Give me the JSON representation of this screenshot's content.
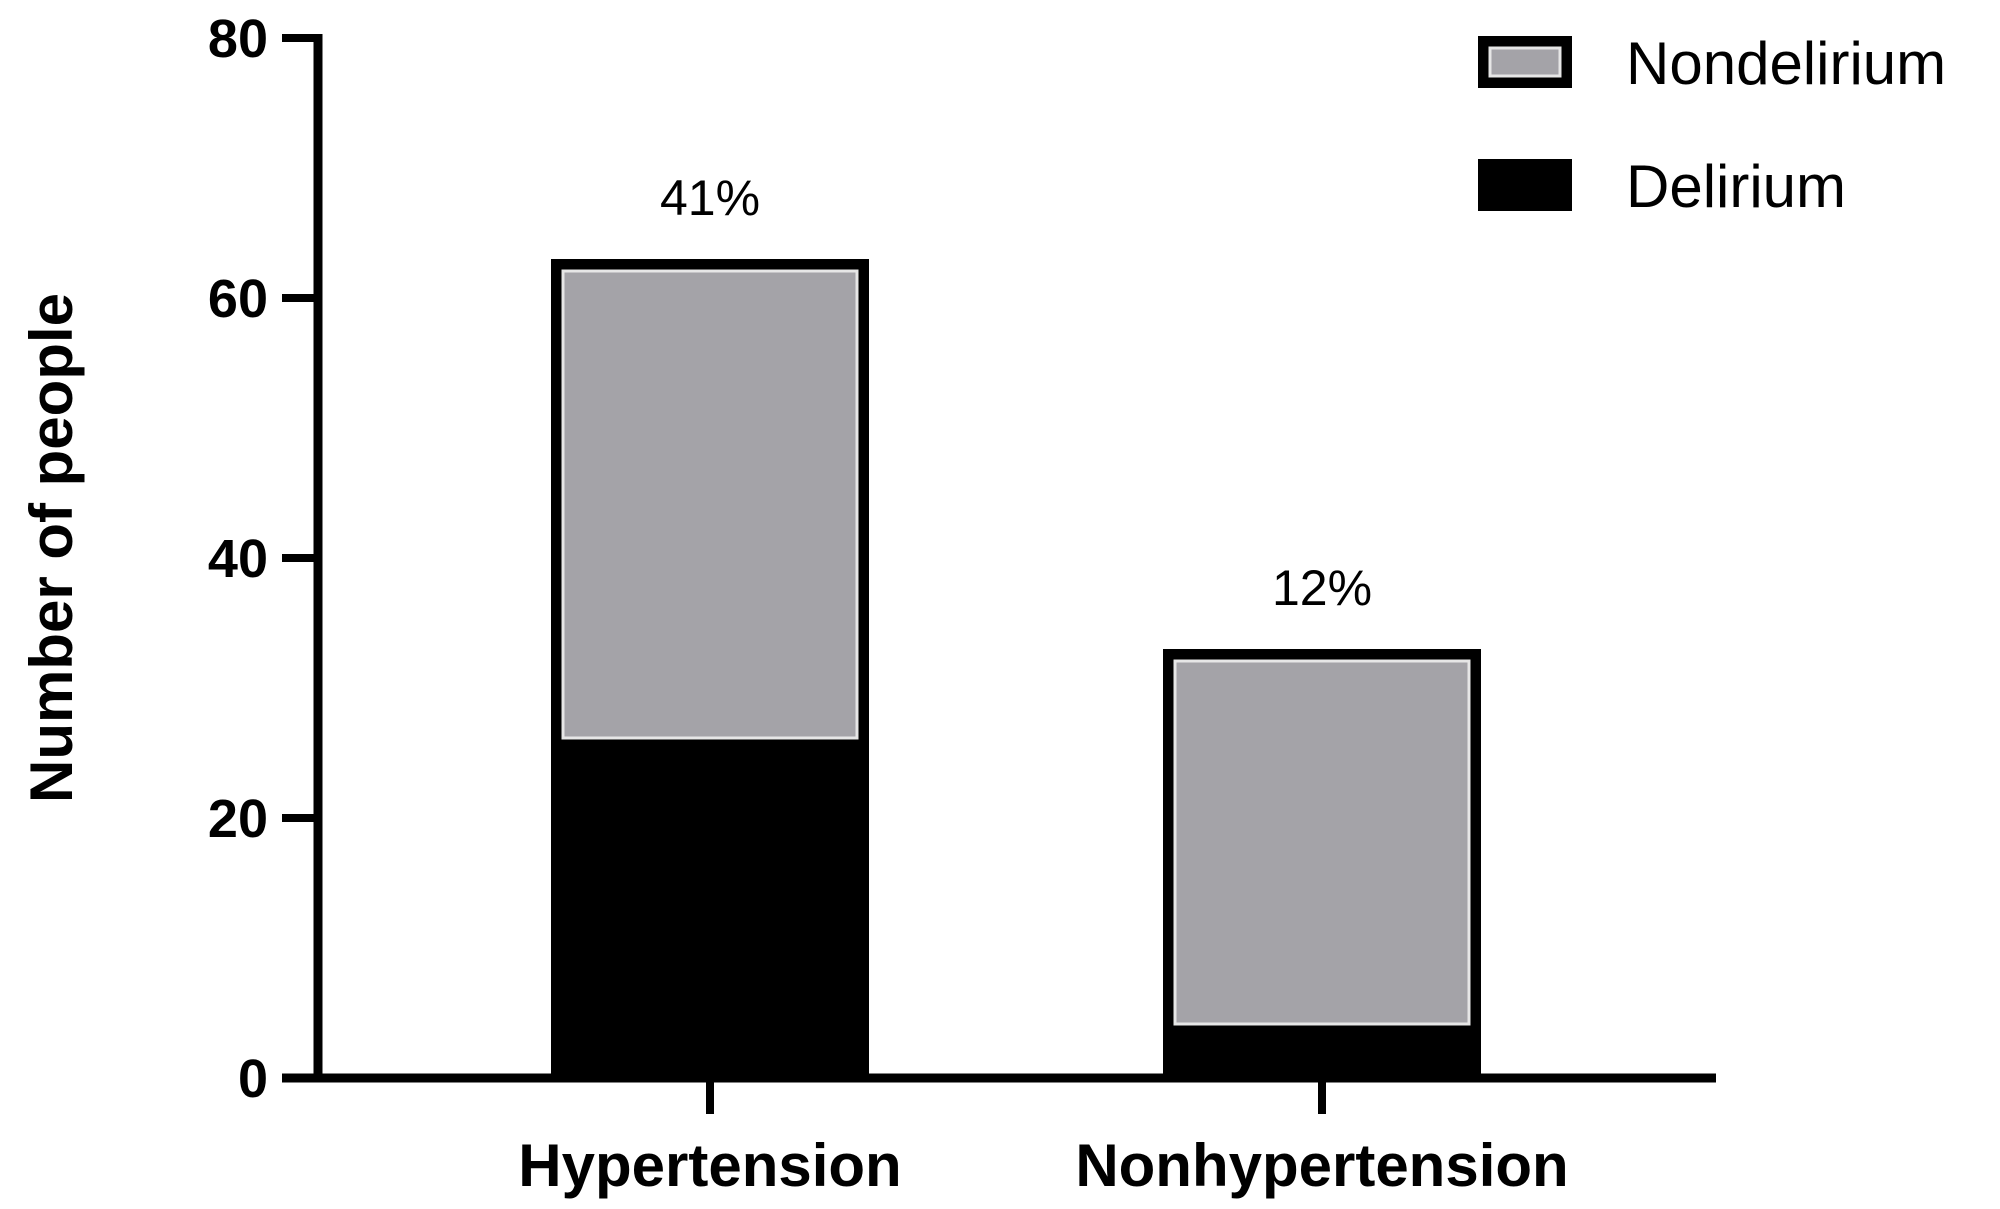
{
  "chart_data": {
    "type": "bar",
    "stacked": true,
    "categories": [
      "Hypertension",
      "Nonhypertension"
    ],
    "series": [
      {
        "name": "Delirium",
        "values": [
          26,
          4
        ],
        "color": "#000000"
      },
      {
        "name": "Nondelirium",
        "values": [
          37,
          29
        ],
        "color": "#a4a3a8"
      }
    ],
    "bar_labels": [
      "41%",
      "12%"
    ],
    "ylabel": "Number of people",
    "xlabel": "",
    "title": "",
    "ylim": [
      0,
      80
    ],
    "yticks": [
      0,
      20,
      40,
      60,
      80
    ],
    "grid": false,
    "legend": {
      "position": "top-right",
      "entries": [
        "Nondelirium",
        "Delirium"
      ]
    }
  }
}
